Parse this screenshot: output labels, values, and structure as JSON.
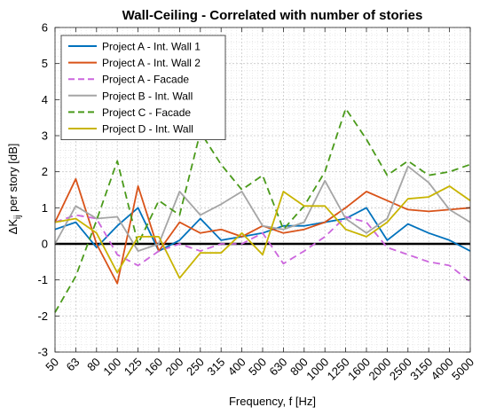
{
  "chart_data": {
    "type": "line",
    "title": "Wall-Ceiling - Correlated with number of stories",
    "xlabel": "Frequency, f [Hz]",
    "ylabel_parts": [
      "ΔK",
      "ij",
      " per story [dB]"
    ],
    "categories": [
      "50",
      "63",
      "80",
      "100",
      "125",
      "160",
      "200",
      "250",
      "315",
      "400",
      "500",
      "630",
      "800",
      "1000",
      "1250",
      "1600",
      "2000",
      "2500",
      "3150",
      "4000",
      "5000"
    ],
    "ylim": [
      -3,
      6
    ],
    "yticks": [
      "-3",
      "-2",
      "-1",
      "0",
      "1",
      "2",
      "3",
      "4",
      "5",
      "6"
    ],
    "grid": true,
    "minor_grid": true,
    "zero_line": true,
    "legend_position": "top-left",
    "series": [
      {
        "name": "Project A - Int. Wall 1",
        "color": "#0072BD",
        "dash": "solid",
        "values": [
          0.4,
          0.6,
          -0.1,
          0.5,
          1.0,
          -0.2,
          0.1,
          0.7,
          0.1,
          0.2,
          0.3,
          0.5,
          0.5,
          0.6,
          0.7,
          1.0,
          0.1,
          0.55,
          0.3,
          0.1,
          -0.2
        ]
      },
      {
        "name": "Project A - Int. Wall 2",
        "color": "#D95319",
        "dash": "solid",
        "values": [
          0.6,
          1.8,
          0.0,
          -1.1,
          1.6,
          -0.2,
          0.6,
          0.3,
          0.4,
          0.2,
          0.5,
          0.3,
          0.4,
          0.6,
          1.0,
          1.45,
          1.2,
          0.95,
          0.9,
          0.95,
          1.0
        ]
      },
      {
        "name": "Project A - Facade",
        "color": "#CC66DD",
        "dash": "dashed",
        "values": [
          0.6,
          0.8,
          0.7,
          -0.3,
          -0.6,
          -0.2,
          0.0,
          -0.2,
          0.0,
          0.0,
          0.3,
          -0.55,
          -0.2,
          0.2,
          0.75,
          0.6,
          -0.1,
          -0.3,
          -0.5,
          -0.6,
          -1.05
        ]
      },
      {
        "name": "Project B - Int. Wall",
        "color": "#A5A5A5",
        "dash": "solid",
        "values": [
          0.0,
          1.05,
          0.7,
          0.75,
          -0.2,
          0.0,
          1.45,
          0.8,
          1.1,
          1.45,
          0.5,
          0.4,
          0.6,
          1.75,
          0.7,
          0.3,
          0.7,
          2.15,
          1.7,
          0.95,
          0.6
        ]
      },
      {
        "name": "Project C - Facade",
        "color": "#4A9A1A",
        "dash": "dashed",
        "values": [
          -1.9,
          -0.9,
          0.65,
          2.3,
          0.0,
          1.2,
          0.8,
          3.1,
          2.2,
          1.5,
          1.9,
          0.4,
          1.05,
          2.0,
          3.75,
          2.9,
          1.9,
          2.3,
          1.9,
          2.0,
          2.2
        ]
      },
      {
        "name": "Project D - Int. Wall",
        "color": "#C8B400",
        "dash": "solid",
        "values": [
          0.6,
          0.7,
          0.3,
          -0.8,
          0.2,
          0.2,
          -0.95,
          -0.25,
          -0.25,
          0.3,
          -0.3,
          1.45,
          1.05,
          1.05,
          0.4,
          0.2,
          0.6,
          1.25,
          1.3,
          1.6,
          1.2
        ]
      }
    ]
  }
}
